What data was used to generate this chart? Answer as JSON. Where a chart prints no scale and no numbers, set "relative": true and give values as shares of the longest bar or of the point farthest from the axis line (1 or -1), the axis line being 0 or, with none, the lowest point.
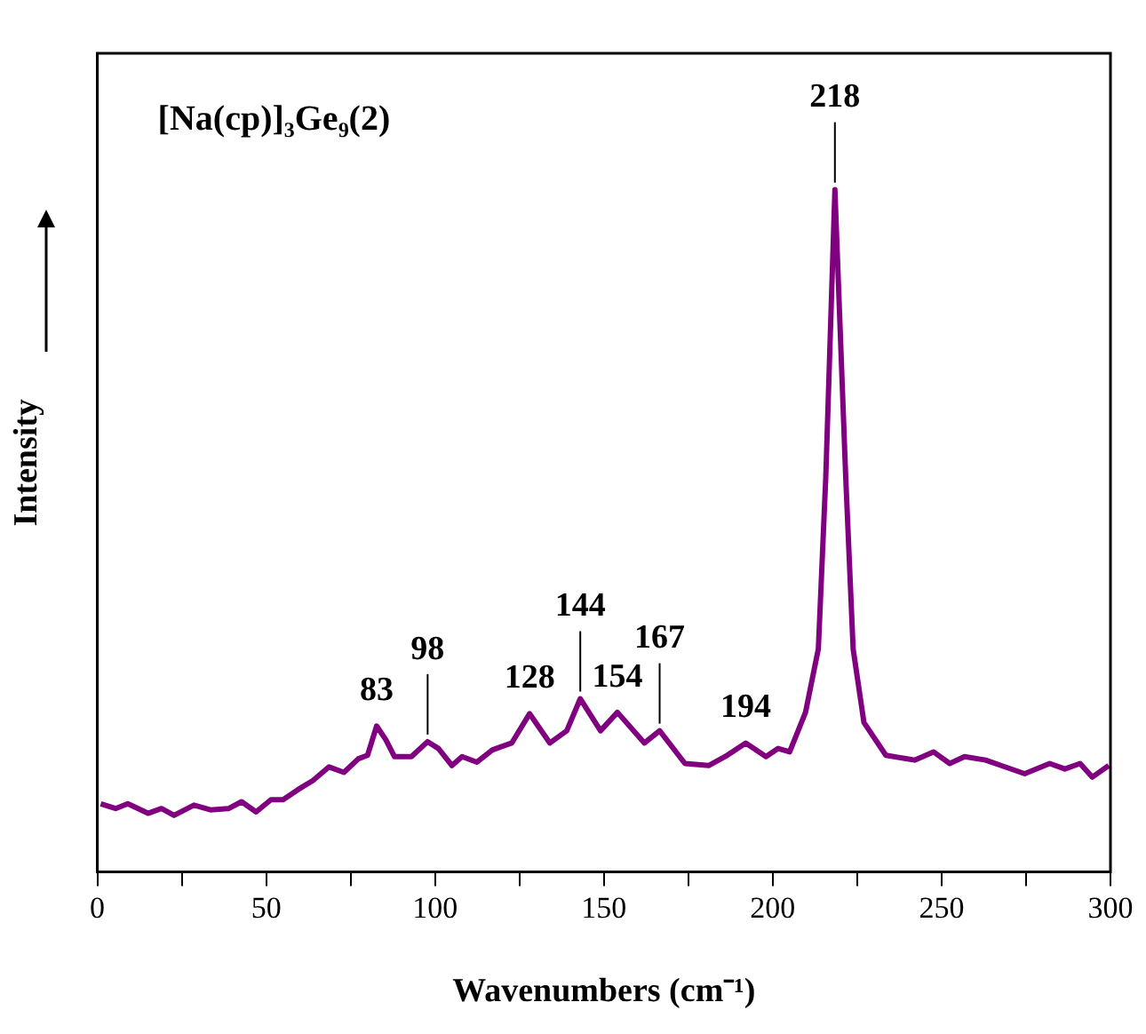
{
  "chart_data": {
    "type": "line",
    "xlabel": "Wavenumbers (cm⁻¹)",
    "ylabel": "Intensity",
    "relative": true,
    "color": "#800080",
    "grid": false,
    "legend": false,
    "marker": "none",
    "line_style": "solid",
    "xlim": [
      0,
      300
    ],
    "xticks": [
      0,
      {
        "value": 25,
        "label": null
      },
      50,
      {
        "value": 75,
        "label": null
      },
      100,
      {
        "value": 125,
        "label": null
      },
      150,
      {
        "value": 175,
        "label": null
      },
      200,
      {
        "value": 225,
        "label": null
      },
      250,
      {
        "value": 275,
        "label": null
      },
      300
    ],
    "x": [
      1,
      5.4,
      9,
      15,
      19,
      22.7,
      28.6,
      33.5,
      38.9,
      42.7,
      47,
      51.4,
      55,
      59.5,
      63.8,
      68.6,
      73,
      77.3,
      80,
      82.7,
      85.4,
      88,
      93,
      97.8,
      101,
      105,
      108,
      112.4,
      117,
      122.7,
      128,
      134,
      139,
      143,
      149,
      154,
      162,
      166.5,
      174,
      181,
      186.5,
      192,
      198,
      201.6,
      205,
      209.7,
      213.5,
      215.7,
      218.4,
      221.6,
      223.8,
      227,
      233.5,
      242,
      247.6,
      252.4,
      256.8,
      263,
      267.6,
      274.6,
      282,
      286.5,
      291,
      294.6,
      299.5
    ],
    "values": [
      0.1,
      0.093,
      0.1,
      0.086,
      0.093,
      0.083,
      0.098,
      0.091,
      0.093,
      0.103,
      0.088,
      0.106,
      0.106,
      0.121,
      0.134,
      0.154,
      0.146,
      0.166,
      0.171,
      0.214,
      0.194,
      0.169,
      0.169,
      0.191,
      0.181,
      0.156,
      0.169,
      0.161,
      0.179,
      0.189,
      0.232,
      0.189,
      0.207,
      0.254,
      0.207,
      0.234,
      0.189,
      0.207,
      0.159,
      0.156,
      0.171,
      0.189,
      0.169,
      0.181,
      0.176,
      0.234,
      0.327,
      0.579,
      1,
      0.579,
      0.327,
      0.219,
      0.171,
      0.164,
      0.176,
      0.159,
      0.169,
      0.164,
      0.156,
      0.144,
      0.159,
      0.151,
      0.159,
      0.139,
      0.156
    ],
    "annotations": [
      "[Na(cp)]₃Ge₉(2)",
      {
        "text": "83",
        "x": 82.7,
        "y": 0.214
      },
      {
        "text": "98",
        "x": 97.8,
        "y": 0.191
      },
      {
        "text": "128",
        "x": 128,
        "y": 0.232
      },
      {
        "text": "144",
        "x": 143,
        "y": 0.254
      },
      {
        "text": "154",
        "x": 154,
        "y": 0.234
      },
      {
        "text": "167",
        "x": 166.5,
        "y": 0.207
      },
      {
        "text": "194",
        "x": 192,
        "y": 0.189
      },
      {
        "text": "218",
        "x": 218.4,
        "y": 1
      }
    ]
  }
}
